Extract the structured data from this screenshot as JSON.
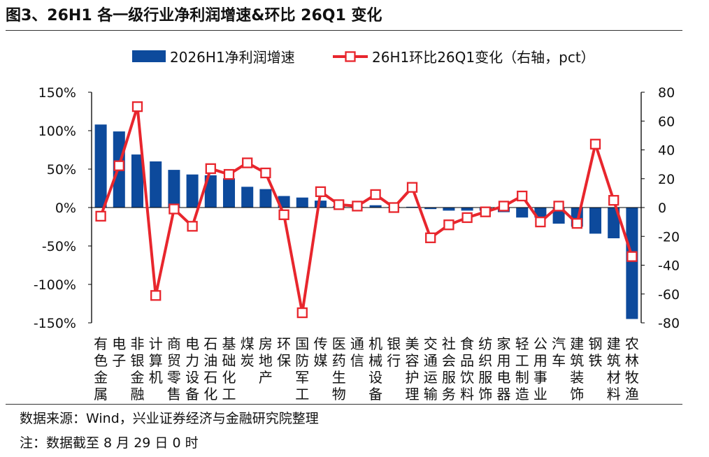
{
  "header": {
    "title": "图3、26H1 各一级行业净利润增速&环比 26Q1 变化"
  },
  "footer": {
    "source": "数据来源：Wind，兴业证券经济与金融研究院整理",
    "note": "注：数据截至 8 月 29 日 0 时"
  },
  "chart_data": {
    "type": "bar+line",
    "categories": [
      "有色金属",
      "电子",
      "非银金融",
      "计算机",
      "商贸零售",
      "电力设备",
      "石油石化",
      "基础化工",
      "煤炭",
      "房地产",
      "环保",
      "国防军工",
      "传媒",
      "医药生物",
      "通信",
      "机械设备",
      "银行",
      "美容护理",
      "交通运输",
      "社会服务",
      "食品饮料",
      "纺织服饰",
      "家用电器",
      "轻工制造",
      "公用事业",
      "汽车",
      "建筑装饰",
      "钢铁",
      "建筑材料",
      "农林牧渔"
    ],
    "series": [
      {
        "name": "2026H1净利润增速",
        "type": "bar",
        "axis": "left",
        "color": "#0d4a9c",
        "values": [
          108,
          99,
          69,
          60,
          49,
          43,
          42,
          38,
          27,
          24,
          15,
          13,
          9,
          2,
          1,
          3,
          1,
          1,
          -2,
          -4,
          -4,
          -4,
          -6,
          -13,
          -13,
          -21,
          -25,
          -34,
          -40,
          -145
        ]
      },
      {
        "name": "26H1环比26Q1变化（右轴，pct）",
        "type": "line",
        "axis": "right",
        "color": "#e8262d",
        "values": [
          -6,
          29,
          70,
          -61,
          -1,
          -13,
          27,
          23,
          31,
          24,
          -5,
          -73,
          11,
          2,
          1,
          9,
          0,
          14,
          -21,
          -12,
          -7,
          -3,
          1,
          8,
          -10,
          1,
          -11,
          44,
          5,
          -34
        ]
      }
    ],
    "y_left": {
      "min": -150,
      "max": 150,
      "ticks": [
        "150%",
        "100%",
        "50%",
        "0%",
        "-50%",
        "-100%",
        "-150%"
      ]
    },
    "y_right": {
      "min": -80,
      "max": 80,
      "ticks": [
        "80",
        "60",
        "40",
        "20",
        "0",
        "-20",
        "-40",
        "-60",
        "-80"
      ]
    },
    "legend_position": "top",
    "grid": false
  }
}
